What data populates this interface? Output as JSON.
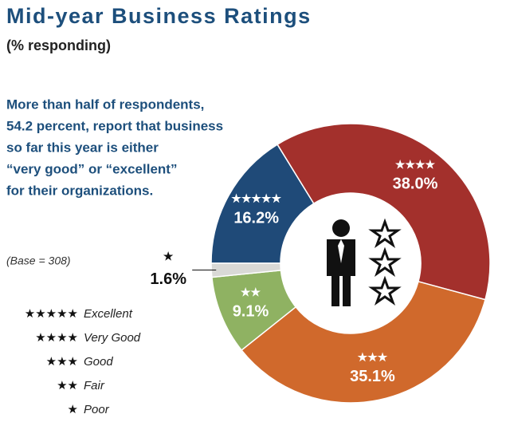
{
  "chart_data": {
    "type": "donut",
    "title": "Mid-year Business Ratings",
    "subtitle": "(% responding)",
    "annotation": [
      "More than half of respondents,",
      "54.2 percent, report that business",
      "so far this year is either",
      "“very good” or “excellent”",
      "for their organizations."
    ],
    "note": "(Base = 308)",
    "categories": [
      "Excellent",
      "Very Good",
      "Good",
      "Fair",
      "Poor"
    ],
    "symbols": [
      "★★★★★",
      "★★★★",
      "★★★",
      "★★",
      "★"
    ],
    "values": [
      16.2,
      38.0,
      35.1,
      9.1,
      1.6
    ],
    "value_labels": [
      "16.2%",
      "38.0%",
      "35.1%",
      "9.1%",
      "1.6%"
    ],
    "colors": [
      "#1f4a78",
      "#a3302c",
      "#d0692c",
      "#8fb262",
      "#d9d9d6"
    ]
  }
}
